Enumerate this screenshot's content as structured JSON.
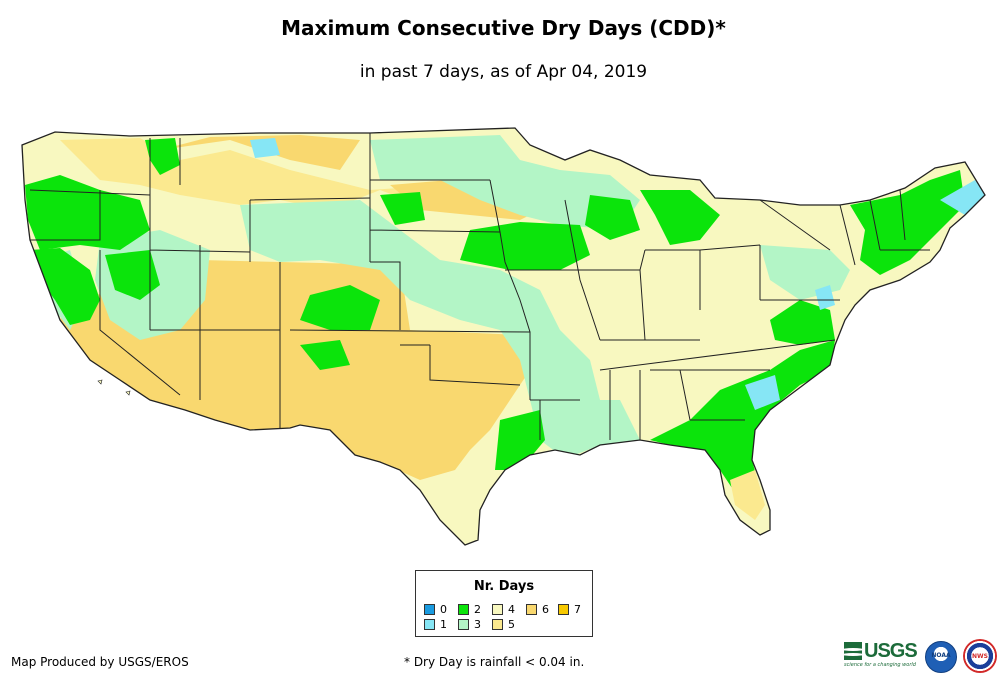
{
  "title": "Maximum Consecutive Dry Days (CDD)*",
  "subtitle": "in past 7 days, as of Apr 04, 2019",
  "legend": {
    "title": "Nr. Days",
    "items": [
      {
        "label": "0",
        "color": "#1a9be0"
      },
      {
        "label": "1",
        "color": "#86e6f5"
      },
      {
        "label": "2",
        "color": "#0be40b"
      },
      {
        "label": "3",
        "color": "#b3f5c6"
      },
      {
        "label": "4",
        "color": "#f8f8c0"
      },
      {
        "label": "5",
        "color": "#fbe98f"
      },
      {
        "label": "6",
        "color": "#f9d86f"
      },
      {
        "label": "7",
        "color": "#f7c900"
      }
    ]
  },
  "footer": {
    "credit": "Map Produced by USGS/EROS",
    "note": "* Dry Day is rainfall < 0.04 in."
  },
  "logos": {
    "usgs": "USGS",
    "usgs_tagline": "science for a changing world",
    "noaa": "NOAA",
    "nws": "NWS"
  },
  "colors": {
    "dry4": "#f8f8c0",
    "dry5": "#fbe98f",
    "dry6": "#f9d86f",
    "wet1": "#86e6f5",
    "wet2": "#0be40b",
    "wet3": "#b3f5c6",
    "border": "#222222"
  }
}
